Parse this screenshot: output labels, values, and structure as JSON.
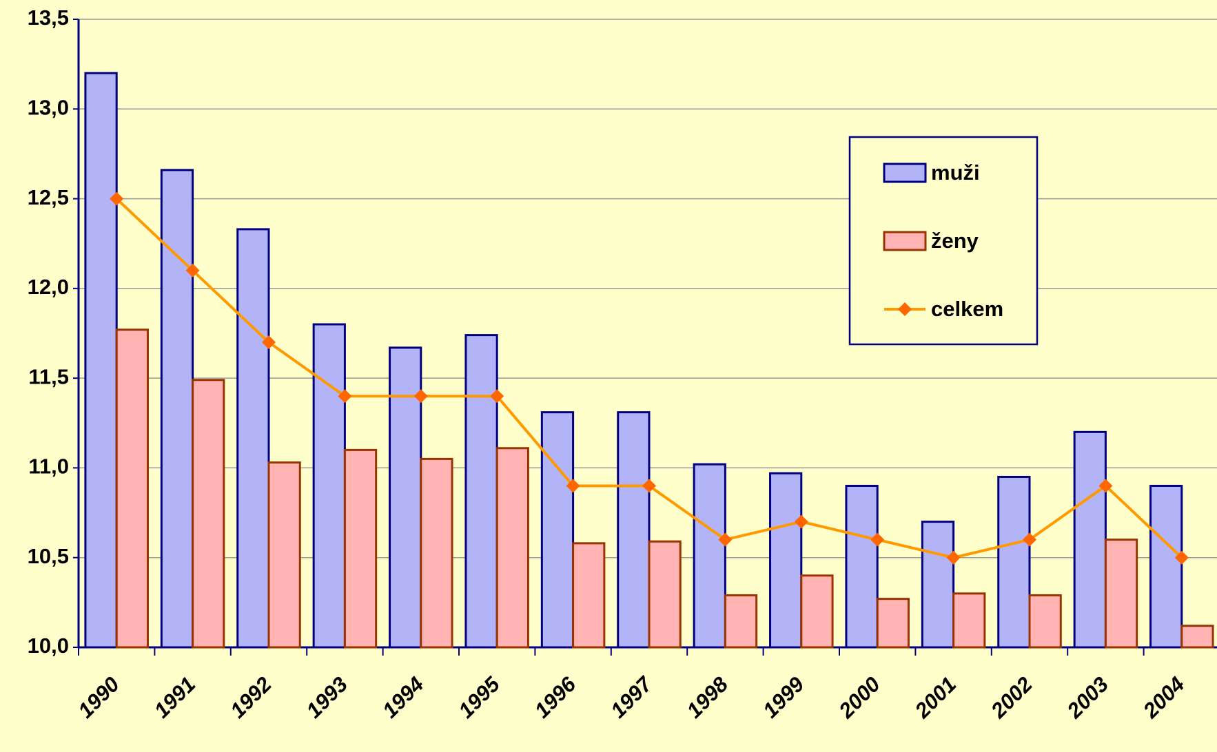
{
  "chart_data": {
    "type": "bar",
    "categories": [
      "1990",
      "1991",
      "1992",
      "1993",
      "1994",
      "1995",
      "1996",
      "1997",
      "1998",
      "1999",
      "2000",
      "2001",
      "2002",
      "2003",
      "2004"
    ],
    "series": [
      {
        "name": "muži",
        "type": "bar",
        "color": "#b3b3f8",
        "edge": "#000080",
        "values": [
          13.2,
          12.66,
          12.33,
          11.8,
          11.67,
          11.74,
          11.31,
          11.31,
          11.02,
          10.97,
          10.9,
          10.7,
          10.95,
          11.2,
          10.9
        ]
      },
      {
        "name": "ženy",
        "type": "bar",
        "color": "#ffb3b3",
        "edge": "#993300",
        "values": [
          11.77,
          11.49,
          11.03,
          11.1,
          11.05,
          11.11,
          10.58,
          10.59,
          10.29,
          10.4,
          10.27,
          10.3,
          10.29,
          10.6,
          10.12
        ]
      },
      {
        "name": "celkem",
        "type": "line",
        "color": "#ff9900",
        "marker_color": "#ff6600",
        "values": [
          12.5,
          12.1,
          11.7,
          11.4,
          11.4,
          11.4,
          10.9,
          10.9,
          10.6,
          10.7,
          10.6,
          10.5,
          10.6,
          10.9,
          10.5
        ]
      }
    ],
    "ylim": [
      10,
      13.5
    ],
    "yticks": [
      {
        "value": 10,
        "label": "10,0"
      },
      {
        "value": 10.5,
        "label": "10,5"
      },
      {
        "value": 11,
        "label": "11,0"
      },
      {
        "value": 11.5,
        "label": "11,5"
      },
      {
        "value": 12,
        "label": "12,0"
      },
      {
        "value": 12.5,
        "label": "12,5"
      },
      {
        "value": 13,
        "label": "13,0"
      },
      {
        "value": 13.5,
        "label": "13,5"
      }
    ],
    "grid": true,
    "legend": "upper right"
  }
}
